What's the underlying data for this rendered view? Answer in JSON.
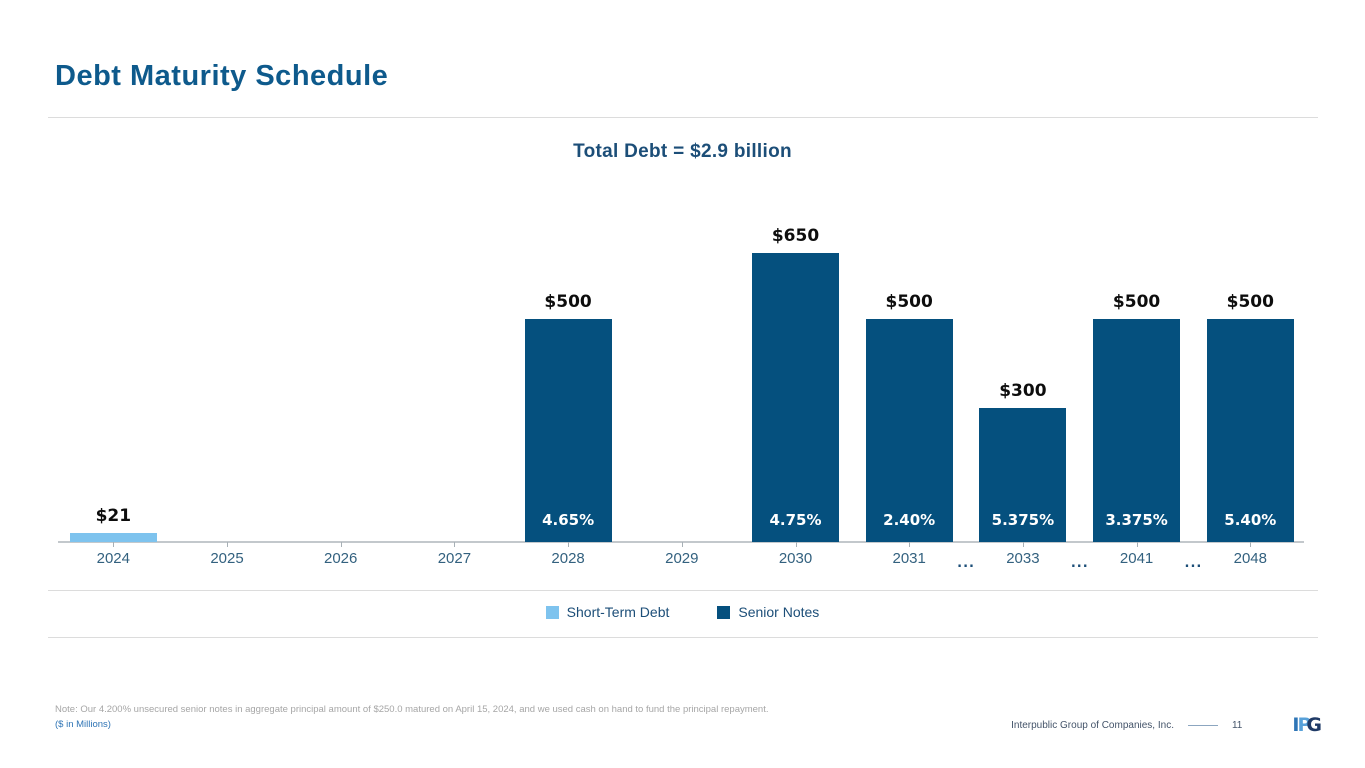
{
  "slide": {
    "title": "Debt Maturity Schedule"
  },
  "chart_data": {
    "type": "bar",
    "title": "Total Debt = $2.9 billion",
    "xlabel": "",
    "ylabel": "",
    "units": "$ in Millions",
    "ylim": [
      0,
      700
    ],
    "grid": false,
    "legend_position": "bottom-center",
    "gap_marker": "...",
    "series": [
      {
        "name": "Short-Term Debt",
        "color": "#7ec3ee"
      },
      {
        "name": "Senior Notes",
        "color": "#05507e"
      }
    ],
    "columns": [
      {
        "year": "2024",
        "value": 21,
        "value_label": "$21",
        "rate_label": "",
        "series": "Short-Term Debt",
        "gap_after": false
      },
      {
        "year": "2025",
        "value": 0,
        "value_label": "",
        "rate_label": "",
        "series": "",
        "gap_after": false
      },
      {
        "year": "2026",
        "value": 0,
        "value_label": "",
        "rate_label": "",
        "series": "",
        "gap_after": false
      },
      {
        "year": "2027",
        "value": 0,
        "value_label": "",
        "rate_label": "",
        "series": "",
        "gap_after": false
      },
      {
        "year": "2028",
        "value": 500,
        "value_label": "$500",
        "rate_label": "4.65%",
        "series": "Senior Notes",
        "gap_after": false
      },
      {
        "year": "2029",
        "value": 0,
        "value_label": "",
        "rate_label": "",
        "series": "",
        "gap_after": false
      },
      {
        "year": "2030",
        "value": 650,
        "value_label": "$650",
        "rate_label": "4.75%",
        "series": "Senior Notes",
        "gap_after": false
      },
      {
        "year": "2031",
        "value": 500,
        "value_label": "$500",
        "rate_label": "2.40%",
        "series": "Senior Notes",
        "gap_after": true
      },
      {
        "year": "2033",
        "value": 300,
        "value_label": "$300",
        "rate_label": "5.375%",
        "series": "Senior Notes",
        "gap_after": true
      },
      {
        "year": "2041",
        "value": 500,
        "value_label": "$500",
        "rate_label": "3.375%",
        "series": "Senior Notes",
        "gap_after": true
      },
      {
        "year": "2048",
        "value": 500,
        "value_label": "$500",
        "rate_label": "5.40%",
        "series": "Senior Notes",
        "gap_after": false
      }
    ]
  },
  "footer": {
    "note": "Note: Our 4.200% unsecured senior notes in aggregate principal amount of $250.0 matured on April 15, 2024, and we used cash on hand to fund the principal repayment.",
    "units_label": "($ in Millions)",
    "company": "Interpublic Group of Companies, Inc.",
    "page_number": "11",
    "logo_letters": [
      "I",
      "P",
      "G"
    ]
  }
}
